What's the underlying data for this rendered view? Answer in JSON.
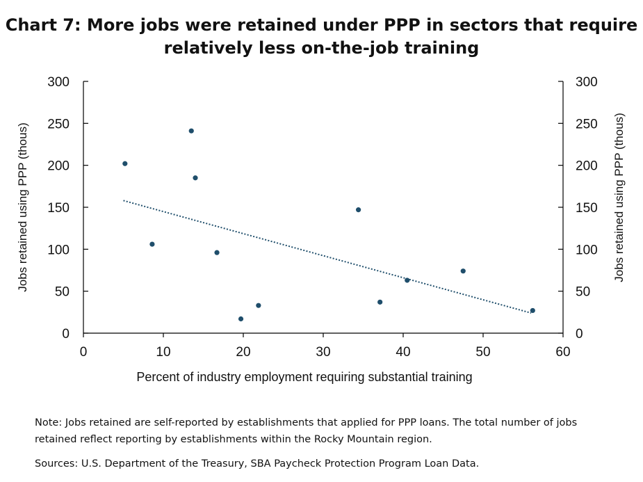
{
  "title_line1": "Chart 7: More jobs were retained under PPP in sectors that require",
  "title_line2": "relatively less on-the-job training",
  "note": "Note: Jobs retained are self-reported by establishments that applied for PPP loans. The total number of jobs retained reflect reporting by establishments within the Rocky Mountain region.",
  "sources": "Sources: U.S. Department of the Treasury, SBA Paycheck Protection Program Loan Data.",
  "colors": {
    "points": "#1f4e6b",
    "trend": "#1f4e6b",
    "axis": "#000000"
  },
  "chart_data": {
    "type": "scatter",
    "xlabel": "Percent of industry employment requiring substantial training",
    "ylabel": "Jobs retained using PPP (thous)",
    "ylabel_right": "Jobs retained using PPP (thous)",
    "xlim": [
      0,
      60
    ],
    "ylim": [
      0,
      300
    ],
    "x_ticks": [
      0,
      10,
      20,
      30,
      40,
      50,
      60
    ],
    "y_ticks": [
      0,
      50,
      100,
      150,
      200,
      250,
      300
    ],
    "grid": false,
    "points": [
      {
        "x": 5.2,
        "y": 202
      },
      {
        "x": 8.6,
        "y": 106
      },
      {
        "x": 13.5,
        "y": 241
      },
      {
        "x": 14.0,
        "y": 185
      },
      {
        "x": 16.7,
        "y": 96
      },
      {
        "x": 19.7,
        "y": 17
      },
      {
        "x": 21.9,
        "y": 33
      },
      {
        "x": 34.4,
        "y": 147
      },
      {
        "x": 37.1,
        "y": 37
      },
      {
        "x": 40.5,
        "y": 63
      },
      {
        "x": 47.5,
        "y": 74
      },
      {
        "x": 56.2,
        "y": 27
      }
    ],
    "trendline": {
      "x": [
        5.0,
        56.0
      ],
      "y": [
        158,
        24
      ]
    }
  }
}
